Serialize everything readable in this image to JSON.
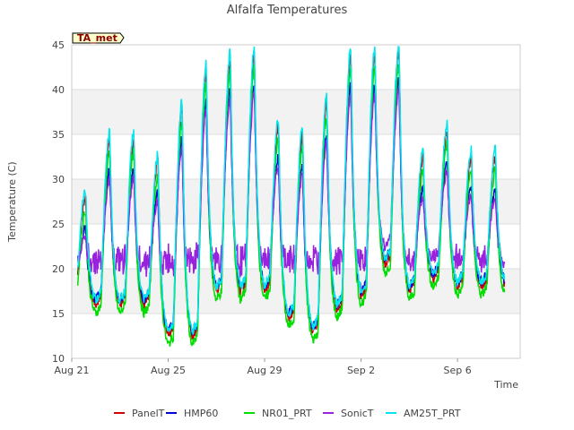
{
  "chart_data": {
    "type": "line",
    "title": "Alfalfa Temperatures",
    "xlabel": "Time",
    "ylabel": "Temperature (C)",
    "badge": "TA_met",
    "xlim": [
      0,
      18.6
    ],
    "ylim": [
      10,
      45
    ],
    "yticks": [
      10,
      15,
      20,
      25,
      30,
      35,
      40,
      45
    ],
    "xticks": [
      {
        "day": 0,
        "label": "Aug 21"
      },
      {
        "day": 4,
        "label": "Aug 25"
      },
      {
        "day": 8,
        "label": "Aug 29"
      },
      {
        "day": 12,
        "label": "Sep 2"
      },
      {
        "day": 16,
        "label": "Sep 6"
      }
    ],
    "grid_bands": [
      [
        15,
        20
      ],
      [
        25,
        30
      ],
      [
        35,
        40
      ]
    ],
    "legend_position": "bottom",
    "daily_max": [
      28,
      34.5,
      34.5,
      32,
      38,
      42,
      43.5,
      44,
      36,
      35,
      38.5,
      44,
      44,
      44.5,
      32.5,
      35.5,
      32.5
    ],
    "daily_min": [
      16.5,
      15.5,
      15.5,
      15.5,
      12,
      12,
      17,
      17,
      17,
      14,
      12.5,
      15,
      16.5,
      20,
      17,
      18.5,
      17.5
    ],
    "series": [
      {
        "name": "PanelT",
        "color": "#cc0000",
        "max_offset": 0,
        "min_offset": 0.5,
        "night_floor": 0
      },
      {
        "name": "HMP60",
        "color": "#0000dd",
        "max_offset": -3.5,
        "min_offset": 1.0,
        "night_floor": 0
      },
      {
        "name": "NR01_PRT",
        "color": "#00dd00",
        "max_offset": -1.5,
        "min_offset": -0.5,
        "night_floor": 0
      },
      {
        "name": "SonicT",
        "color": "#9922dd",
        "max_offset": -4.5,
        "min_offset": 2.5,
        "night_floor": 21
      },
      {
        "name": "AM25T_PRT",
        "color": "#00e5ee",
        "max_offset": 0.8,
        "min_offset": 1.0,
        "night_floor": 0
      }
    ]
  }
}
